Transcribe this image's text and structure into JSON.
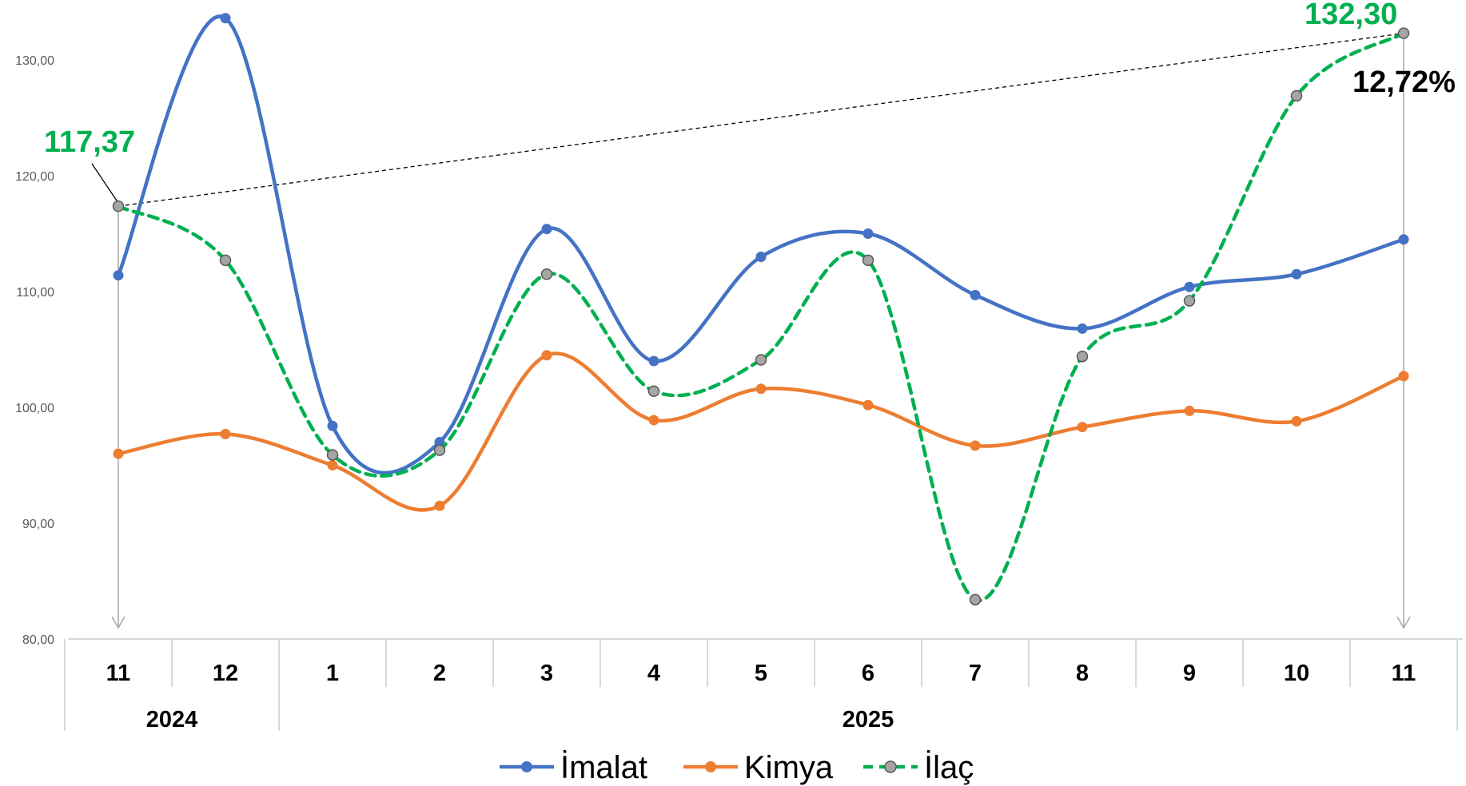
{
  "chart_data": {
    "type": "line",
    "categories": [
      "11",
      "12",
      "1",
      "2",
      "3",
      "4",
      "5",
      "6",
      "7",
      "8",
      "9",
      "10",
      "11"
    ],
    "year_groups": [
      {
        "label": "2024",
        "span": [
          0,
          1
        ]
      },
      {
        "label": "2025",
        "span": [
          2,
          12
        ]
      }
    ],
    "ylim": [
      80,
      135
    ],
    "yticks": [
      "80,00",
      "90,00",
      "100,00",
      "110,00",
      "120,00",
      "130,00"
    ],
    "ytick_values": [
      80,
      90,
      100,
      110,
      120,
      130
    ],
    "series": [
      {
        "name": "İmalat",
        "color": "#4472c4",
        "style": "solid",
        "marker": "#4472c4",
        "values": [
          111.4,
          133.6,
          98.4,
          97.0,
          115.4,
          104.0,
          113.0,
          115.0,
          109.7,
          106.8,
          110.4,
          111.5,
          114.5
        ]
      },
      {
        "name": "Kimya",
        "color": "#ed7d31",
        "style": "solid",
        "marker": "#ed7d31",
        "values": [
          96.0,
          97.7,
          95.0,
          91.5,
          104.5,
          98.9,
          101.6,
          100.2,
          96.7,
          98.3,
          99.7,
          98.8,
          102.7
        ]
      },
      {
        "name": "İlaç",
        "color": "#00b050",
        "style": "dashed",
        "marker": "#a5a5a5",
        "values": [
          117.37,
          112.7,
          95.9,
          96.3,
          111.5,
          101.4,
          104.1,
          112.7,
          83.4,
          104.4,
          109.2,
          126.9,
          132.3
        ]
      }
    ],
    "annotations": {
      "start_value": "117,37",
      "end_value": "132,30",
      "change": "12,72%"
    },
    "legend": "bottom",
    "grid": false
  }
}
